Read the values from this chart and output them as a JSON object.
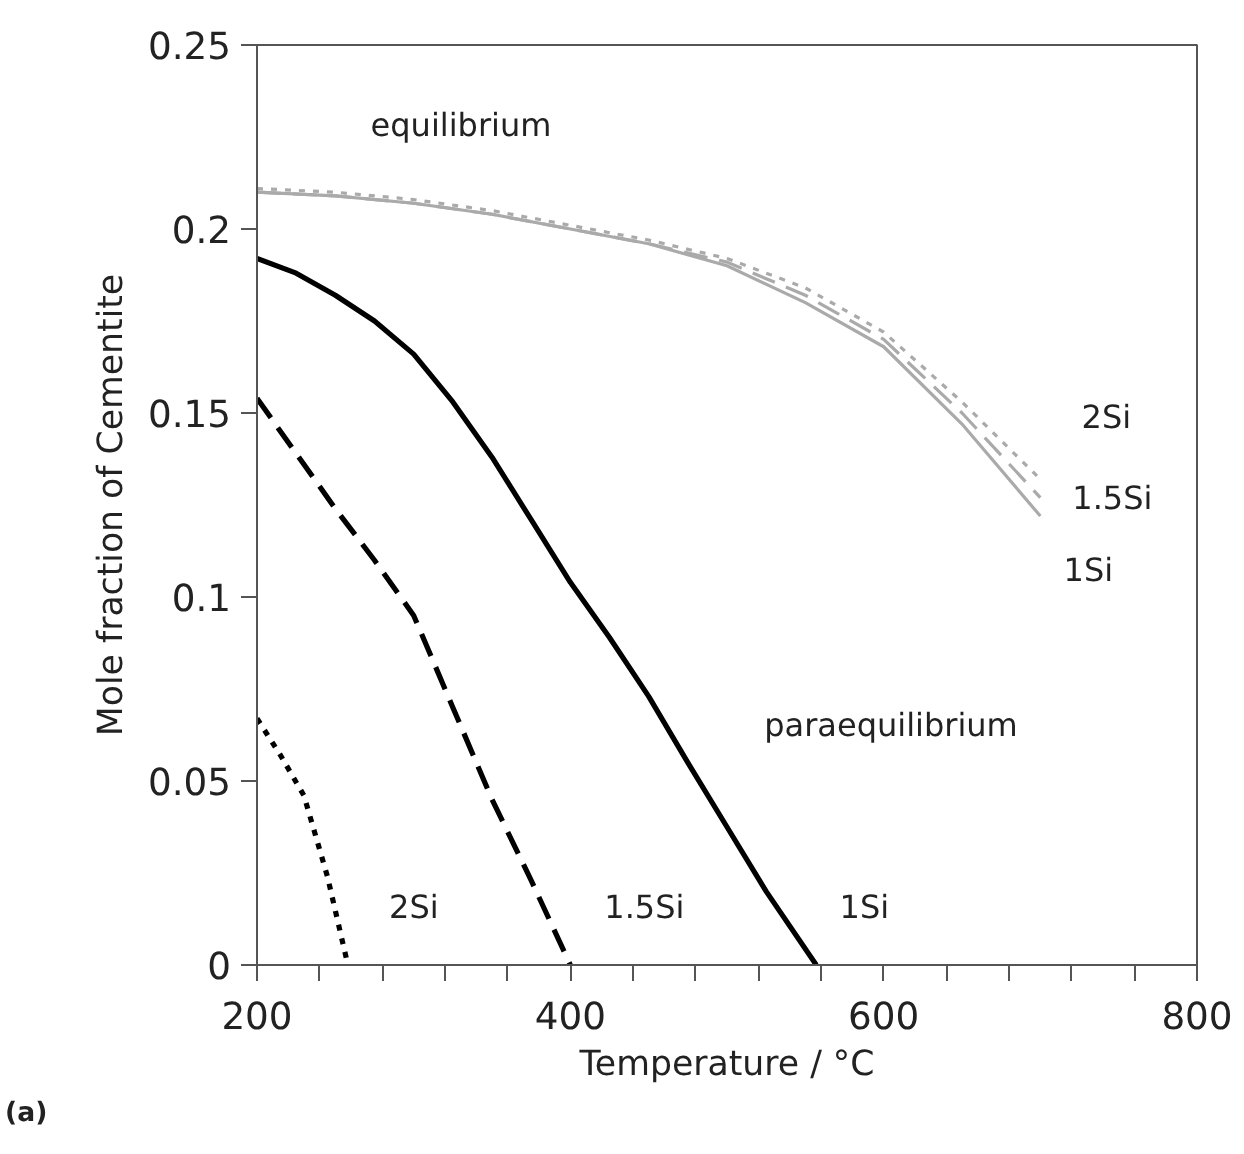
{
  "chart_data": {
    "type": "line",
    "xlabel": "Temperature / °C",
    "ylabel": "Mole fraction of Cementite",
    "xlim": [
      200,
      800
    ],
    "ylim": [
      0,
      0.25
    ],
    "xticks": [
      200,
      {
        "value": 240,
        "label": null
      },
      {
        "value": 280,
        "label": null
      },
      {
        "value": 320,
        "label": null
      },
      {
        "value": 360,
        "label": null
      },
      400,
      {
        "value": 440,
        "label": null
      },
      {
        "value": 480,
        "label": null
      },
      {
        "value": 520,
        "label": null
      },
      {
        "value": 560,
        "label": null
      },
      600,
      {
        "value": 640,
        "label": null
      },
      {
        "value": 680,
        "label": null
      },
      {
        "value": 720,
        "label": null
      },
      {
        "value": 760,
        "label": null
      },
      800
    ],
    "yticks": [
      0,
      0.05,
      0.1,
      0.15,
      0.2,
      0.25
    ],
    "grid": false,
    "series": [
      {
        "name": "1Si",
        "color": "#aaaaaa",
        "line_style": "solid",
        "x": [
          200,
          250,
          300,
          350,
          400,
          450,
          500,
          550,
          600,
          650,
          700
        ],
        "values": [
          0.21,
          0.209,
          0.207,
          0.204,
          0.2,
          0.196,
          0.19,
          0.18,
          0.168,
          0.147,
          0.122
        ]
      },
      {
        "name": "1.5Si",
        "color": "#aaaaaa",
        "line_style": "dashed",
        "x": [
          200,
          250,
          300,
          350,
          400,
          450,
          500,
          550,
          600,
          650,
          700
        ],
        "values": [
          0.21,
          0.209,
          0.207,
          0.204,
          0.2,
          0.196,
          0.191,
          0.182,
          0.17,
          0.15,
          0.127
        ]
      },
      {
        "name": "2Si",
        "color": "#aaaaaa",
        "line_style": "dotted",
        "x": [
          200,
          250,
          300,
          350,
          400,
          450,
          500,
          550,
          600,
          650,
          700
        ],
        "values": [
          0.211,
          0.21,
          0.208,
          0.205,
          0.201,
          0.197,
          0.192,
          0.184,
          0.172,
          0.153,
          0.132
        ]
      },
      {
        "name": "1Si",
        "color": "#000000",
        "line_style": "solid",
        "x": [
          200,
          225,
          250,
          275,
          300,
          325,
          350,
          375,
          400,
          425,
          450,
          475,
          500,
          525,
          557
        ],
        "values": [
          0.192,
          0.188,
          0.182,
          0.175,
          0.166,
          0.153,
          0.138,
          0.121,
          0.104,
          0.089,
          0.073,
          0.055,
          0.0375,
          0.02,
          0
        ]
      },
      {
        "name": "1.5Si",
        "color": "#000000",
        "line_style": "dashed",
        "x": [
          200,
          225,
          250,
          275,
          300,
          325,
          350,
          375,
          400
        ],
        "values": [
          0.154,
          0.139,
          0.124,
          0.11,
          0.095,
          0.07,
          0.045,
          0.023,
          0
        ]
      },
      {
        "name": "2Si",
        "color": "#000000",
        "line_style": "dotted",
        "x": [
          200,
          215,
          230,
          245,
          258
        ],
        "values": [
          0.067,
          0.057,
          0.046,
          0.024,
          0
        ]
      }
    ],
    "annotations": [
      "equilibrium",
      "paraequilibrium",
      "(a)"
    ]
  }
}
